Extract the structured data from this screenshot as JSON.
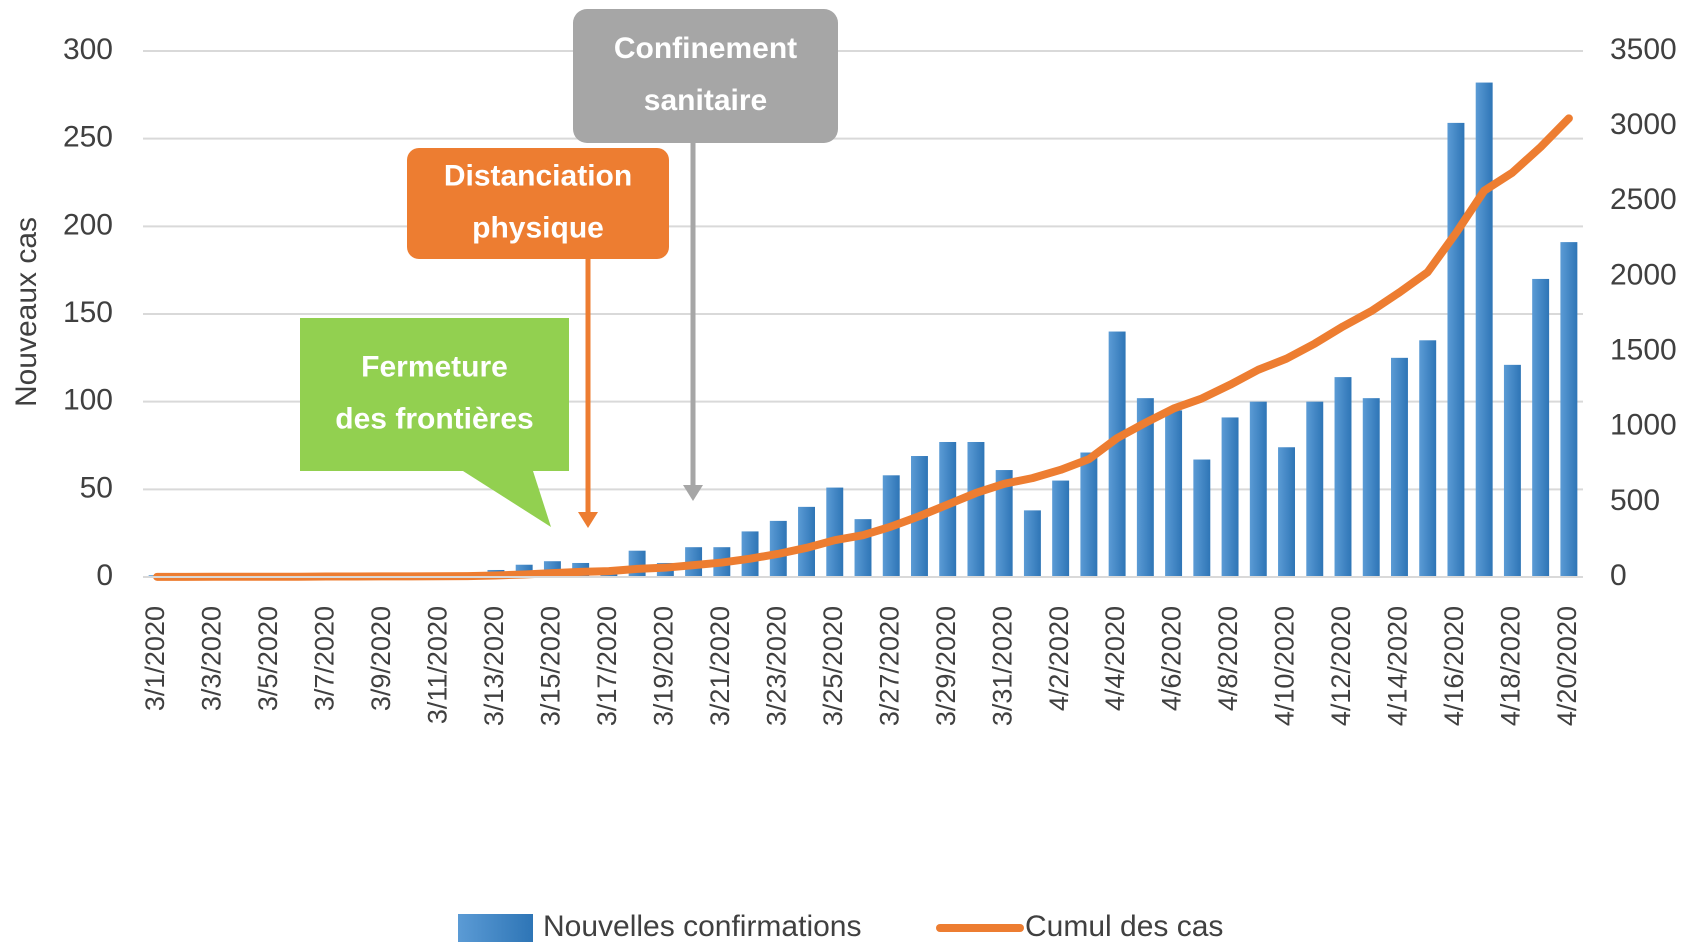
{
  "chart_data": {
    "type": "bar_line",
    "ylabel": "Nouveaux cas",
    "categories": [
      "3/1/2020",
      null,
      "3/3/2020",
      null,
      "3/5/2020",
      null,
      "3/7/2020",
      null,
      "3/9/2020",
      null,
      "3/11/2020",
      null,
      "3/13/2020",
      null,
      "3/15/2020",
      null,
      "3/17/2020",
      null,
      "3/19/2020",
      null,
      "3/21/2020",
      null,
      "3/23/2020",
      null,
      "3/25/2020",
      null,
      "3/27/2020",
      null,
      "3/29/2020",
      null,
      "3/31/2020",
      null,
      "4/2/2020",
      null,
      "4/4/2020",
      null,
      "4/6/2020",
      null,
      "4/8/2020",
      null,
      "4/10/2020",
      null,
      "4/12/2020",
      null,
      "4/14/2020",
      null,
      "4/16/2020",
      null,
      "4/18/2020",
      null,
      "4/20/2020"
    ],
    "series": [
      {
        "name": "Nouvelles confirmations",
        "type": "bar",
        "color": "#5b9bd5",
        "values": [
          1,
          0,
          1,
          0,
          0,
          0,
          1,
          0,
          1,
          0,
          1,
          1,
          4,
          7,
          9,
          8,
          5,
          15,
          8,
          17,
          17,
          26,
          32,
          40,
          51,
          33,
          58,
          69,
          77,
          77,
          61,
          38,
          55,
          71,
          140,
          102,
          95,
          67,
          91,
          100,
          74,
          100,
          114,
          102,
          125,
          135,
          259,
          282,
          121,
          170,
          191
        ]
      },
      {
        "name": "Cumul des cas",
        "type": "line",
        "axis": "y2",
        "color": "#ed7d31",
        "values": [
          1,
          1,
          2,
          2,
          2,
          2,
          3,
          3,
          4,
          4,
          5,
          6,
          10,
          17,
          26,
          34,
          39,
          54,
          62,
          79,
          96,
          122,
          154,
          194,
          245,
          278,
          336,
          405,
          482,
          559,
          620,
          658,
          713,
          784,
          924,
          1026,
          1121,
          1188,
          1279,
          1379,
          1453,
          1553,
          1667,
          1769,
          1894,
          2029,
          2288,
          2570,
          2691,
          2861,
          3052
        ]
      }
    ],
    "ylim": [
      0,
      300
    ],
    "yticks": [
      0,
      50,
      100,
      150,
      200,
      250,
      300
    ],
    "y2lim": [
      0,
      3500
    ],
    "y2ticks": [
      0,
      500,
      1000,
      1500,
      2000,
      2500,
      3000,
      3500
    ],
    "grid": true,
    "legend": "bottom",
    "annotations": [
      {
        "text": [
          "Fermeture",
          "des frontières"
        ],
        "color": "#92d050"
      },
      {
        "text": [
          "Distanciation",
          "physique"
        ],
        "color": "#ed7d31"
      },
      {
        "text": [
          "Confinement",
          "sanitaire"
        ],
        "color": "#a6a6a6"
      }
    ]
  }
}
